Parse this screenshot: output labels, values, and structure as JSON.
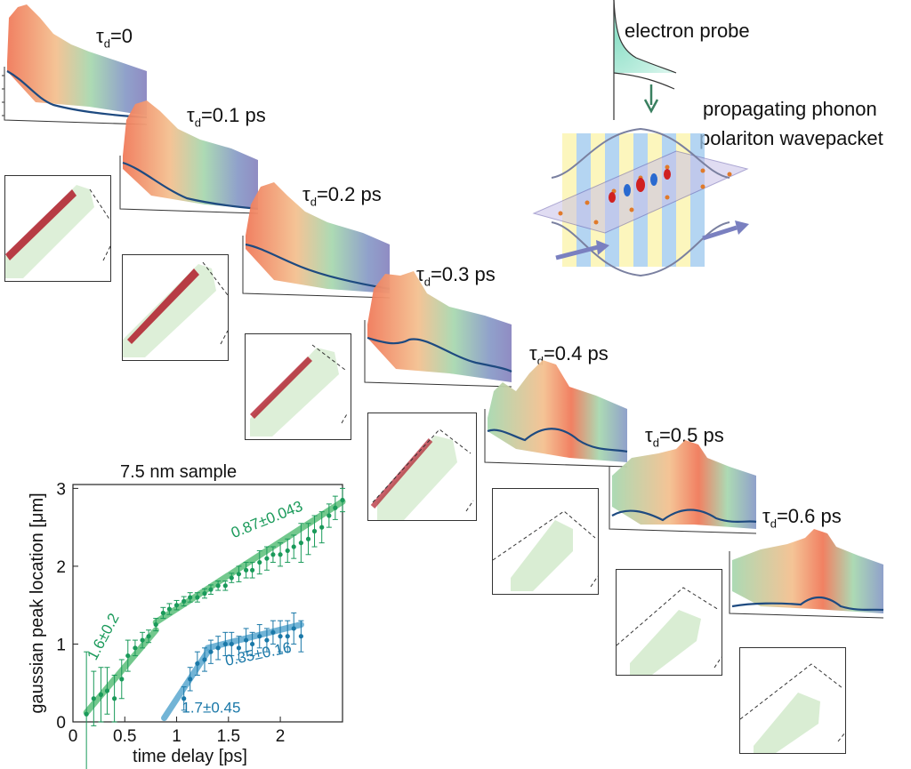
{
  "colors": {
    "green_series": "#1a9a5a",
    "blue_series": "#1a78a8",
    "green_fit": "#5bbf7a",
    "blue_fit": "#5aa8d0",
    "profile_line": "#1e4a80",
    "surface_warm": "#f08060",
    "surface_cool": "#8a86c0"
  },
  "schematic": {
    "probe_label": "electron probe",
    "wavepacket_label_1": "propagating phonon",
    "wavepacket_label_2": "polariton wavepacket"
  },
  "panels": [
    {
      "tau_prefix": "τ",
      "tau_sub": "d",
      "tau_value": "=0"
    },
    {
      "tau_prefix": "τ",
      "tau_sub": "d",
      "tau_value": "=0.1 ps"
    },
    {
      "tau_prefix": "τ",
      "tau_sub": "d",
      "tau_value": "=0.2 ps"
    },
    {
      "tau_prefix": "τ",
      "tau_sub": "d",
      "tau_value": "=0.3 ps"
    },
    {
      "tau_prefix": "τ",
      "tau_sub": "d",
      "tau_value": "=0.4 ps"
    },
    {
      "tau_prefix": "τ",
      "tau_sub": "d",
      "tau_value": "=0.5 ps"
    },
    {
      "tau_prefix": "τ",
      "tau_sub": "d",
      "tau_value": "=0.6 ps"
    }
  ],
  "chart_data": {
    "type": "scatter",
    "title": "7.5 nm sample",
    "xlabel": "time delay [ps]",
    "ylabel": "gaussian peak location  [μm]",
    "xlim": [
      0,
      2.6
    ],
    "ylim": [
      0,
      3.05
    ],
    "xticks": [
      "0",
      "0.5",
      "1",
      "1.5",
      "2"
    ],
    "yticks": [
      "0",
      "1",
      "2",
      "3"
    ],
    "grid": false,
    "series": [
      {
        "color": "#1a9a5a",
        "x": [
          0.13,
          0.2,
          0.27,
          0.33,
          0.4,
          0.47,
          0.53,
          0.6,
          0.67,
          0.73,
          0.8,
          0.87,
          0.93,
          1.0,
          1.07,
          1.13,
          1.2,
          1.27,
          1.33,
          1.4,
          1.47,
          1.53,
          1.6,
          1.67,
          1.73,
          1.8,
          1.87,
          1.93,
          2.0,
          2.07,
          2.13,
          2.2,
          2.27,
          2.33,
          2.4,
          2.47,
          2.53,
          2.6
        ],
        "y": [
          0.1,
          0.3,
          0.35,
          0.4,
          0.3,
          0.55,
          0.85,
          0.95,
          1.05,
          1.1,
          1.25,
          1.4,
          1.45,
          1.5,
          1.55,
          1.6,
          1.6,
          1.65,
          1.7,
          1.75,
          1.75,
          1.85,
          1.9,
          1.95,
          1.95,
          2.05,
          2.1,
          2.15,
          2.15,
          2.2,
          2.25,
          2.3,
          2.35,
          2.45,
          2.5,
          2.65,
          2.75,
          2.85
        ],
        "err": [
          0.8,
          0.35,
          0.35,
          0.3,
          0.3,
          0.25,
          0.2,
          0.1,
          0.1,
          0.08,
          0.08,
          0.07,
          0.07,
          0.06,
          0.06,
          0.06,
          0.06,
          0.06,
          0.06,
          0.06,
          0.06,
          0.06,
          0.1,
          0.1,
          0.1,
          0.15,
          0.15,
          0.1,
          0.15,
          0.15,
          0.15,
          0.25,
          0.2,
          0.2,
          0.2,
          0.15,
          0.15,
          0.15
        ]
      },
      {
        "color": "#1a78a8",
        "x": [
          1.07,
          1.13,
          1.2,
          1.27,
          1.33,
          1.4,
          1.47,
          1.53,
          1.6,
          1.67,
          1.73,
          1.8,
          1.87,
          1.93,
          2.0,
          2.07,
          2.13,
          2.2
        ],
        "y": [
          0.3,
          0.55,
          0.75,
          0.8,
          0.9,
          0.95,
          1.0,
          1.0,
          0.95,
          1.05,
          1.0,
          1.1,
          1.05,
          1.15,
          1.1,
          1.1,
          1.2,
          1.1
        ],
        "err": [
          0.15,
          0.15,
          0.15,
          0.15,
          0.15,
          0.15,
          0.15,
          0.15,
          0.15,
          0.15,
          0.15,
          0.15,
          0.15,
          0.15,
          0.2,
          0.2,
          0.2,
          0.2
        ]
      }
    ],
    "fits": [
      {
        "color": "#5bbf7a",
        "x": [
          0.13,
          0.8
        ],
        "y": [
          0.12,
          1.18
        ],
        "label": "1.6±0.2",
        "label_color": "#1a9a5a"
      },
      {
        "color": "#5bbf7a",
        "x": [
          0.8,
          2.6
        ],
        "y": [
          1.28,
          2.83
        ],
        "label": "0.87±0.043",
        "label_color": "#1a9a5a"
      },
      {
        "color": "#5aa8d0",
        "x": [
          0.88,
          1.3
        ],
        "y": [
          0.05,
          0.9
        ],
        "label": "1.7±0.45",
        "label_color": "#1a78a8"
      },
      {
        "color": "#5aa8d0",
        "x": [
          1.3,
          2.2
        ],
        "y": [
          0.95,
          1.25
        ],
        "label": "0.35±0.16",
        "label_color": "#1a78a8"
      }
    ]
  }
}
